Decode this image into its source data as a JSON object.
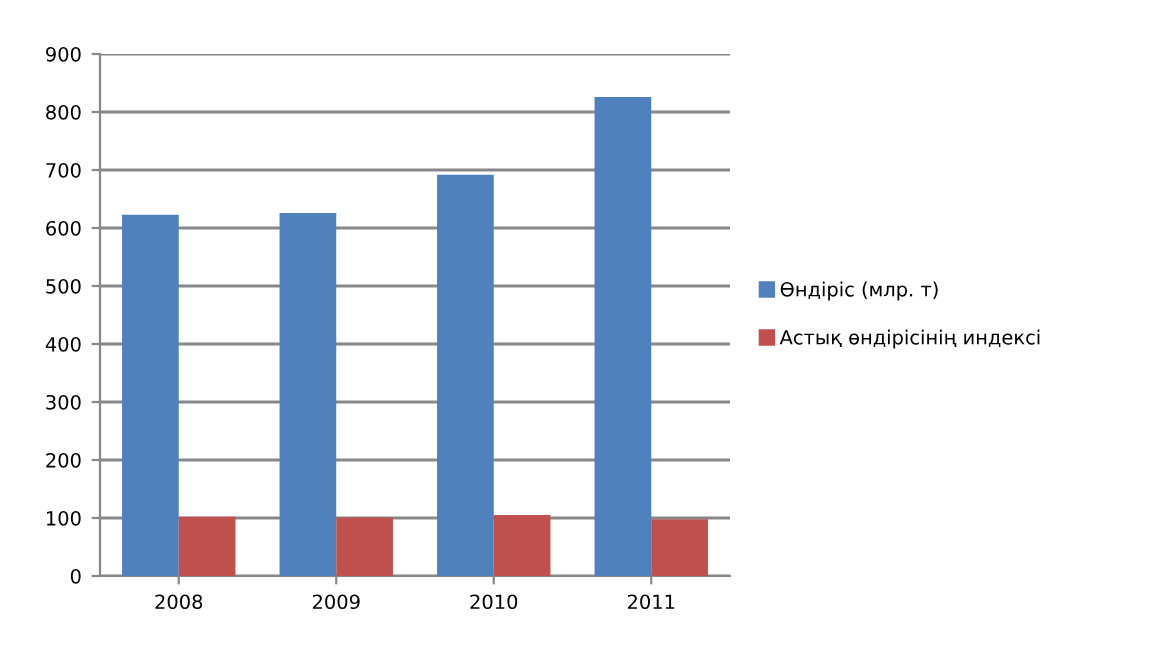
{
  "chart_data": {
    "type": "bar",
    "categories": [
      "2008",
      "2009",
      "2010",
      "2011"
    ],
    "series": [
      {
        "name": "Өндіріс (млр. т)",
        "color": "#4f81bd",
        "values": [
          623,
          626,
          692,
          826
        ]
      },
      {
        "name": "Астық өндірісінің индексі",
        "color": "#c0504d",
        "values": [
          102,
          101,
          105,
          98
        ]
      }
    ],
    "ylim": [
      0,
      900
    ],
    "yticks": [
      0,
      100,
      200,
      300,
      400,
      500,
      600,
      700,
      800,
      900
    ],
    "grid": "y",
    "legend": "right"
  }
}
